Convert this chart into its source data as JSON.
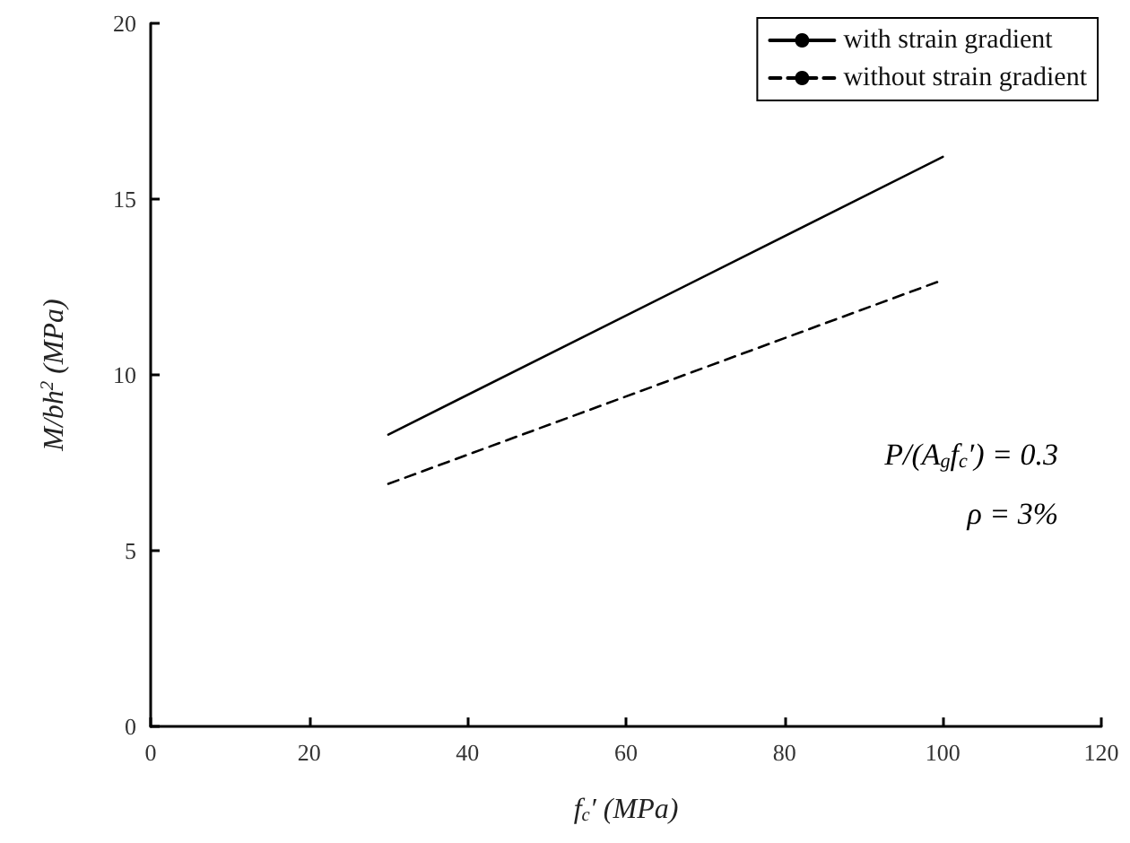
{
  "chart_data": {
    "type": "line",
    "xlabel": "f$_{c}$′ (MPa)",
    "ylabel": "M/bh$^{2}$ (MPa)",
    "xlim": [
      0,
      120
    ],
    "xticks": [
      0,
      20,
      40,
      60,
      80,
      100,
      120
    ],
    "ylim": [
      0,
      20
    ],
    "yticks": [
      0,
      5,
      10,
      15,
      20
    ],
    "x": [
      30,
      100
    ],
    "series": [
      {
        "name": "with strain gradient",
        "color": "#000000",
        "line_style": "solid",
        "values": [
          8.3,
          16.2
        ]
      },
      {
        "name": "without strain gradient",
        "color": "#000000",
        "line_style": "dashed",
        "values": [
          6.9,
          12.7
        ]
      }
    ],
    "annotations": [
      "P/(A$_{g}$f$_{c}$′) = 0.3",
      "ρ = 3%"
    ],
    "legend": "top right",
    "grid": false,
    "marker": "none"
  }
}
